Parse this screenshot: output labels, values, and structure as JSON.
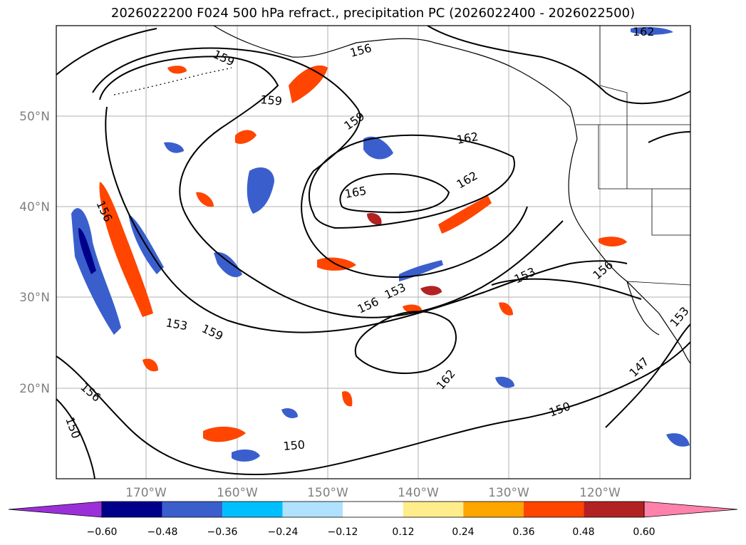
{
  "title": "2026022200 F024 500 hPa refract., precipitation PC (2026022400 - 2026022500)",
  "lat_labels": [
    "50°N",
    "40°N",
    "30°N",
    "20°N"
  ],
  "lon_labels": [
    "170°W",
    "160°W",
    "150°W",
    "140°W",
    "130°W",
    "120°W"
  ],
  "contour_labels": [
    "159",
    "156",
    "159",
    "159",
    "156",
    "162",
    "165",
    "162",
    "153",
    "156",
    "153",
    "156",
    "153",
    "159",
    "162",
    "150",
    "147",
    "156",
    "150",
    "150",
    "153",
    "162"
  ],
  "colorbar": {
    "colors": [
      "#9b30d9",
      "#00008b",
      "#3a5fcd",
      "#00bfff",
      "#b0e2ff",
      "#ffffff",
      "#ffec8b",
      "#ffa500",
      "#ff4500",
      "#b22222",
      "#ff82ab"
    ],
    "tick_labels": [
      "−0.60",
      "−0.48",
      "−0.36",
      "−0.24",
      "−0.12",
      "0.12",
      "0.24",
      "0.36",
      "0.48",
      "0.60"
    ]
  }
}
